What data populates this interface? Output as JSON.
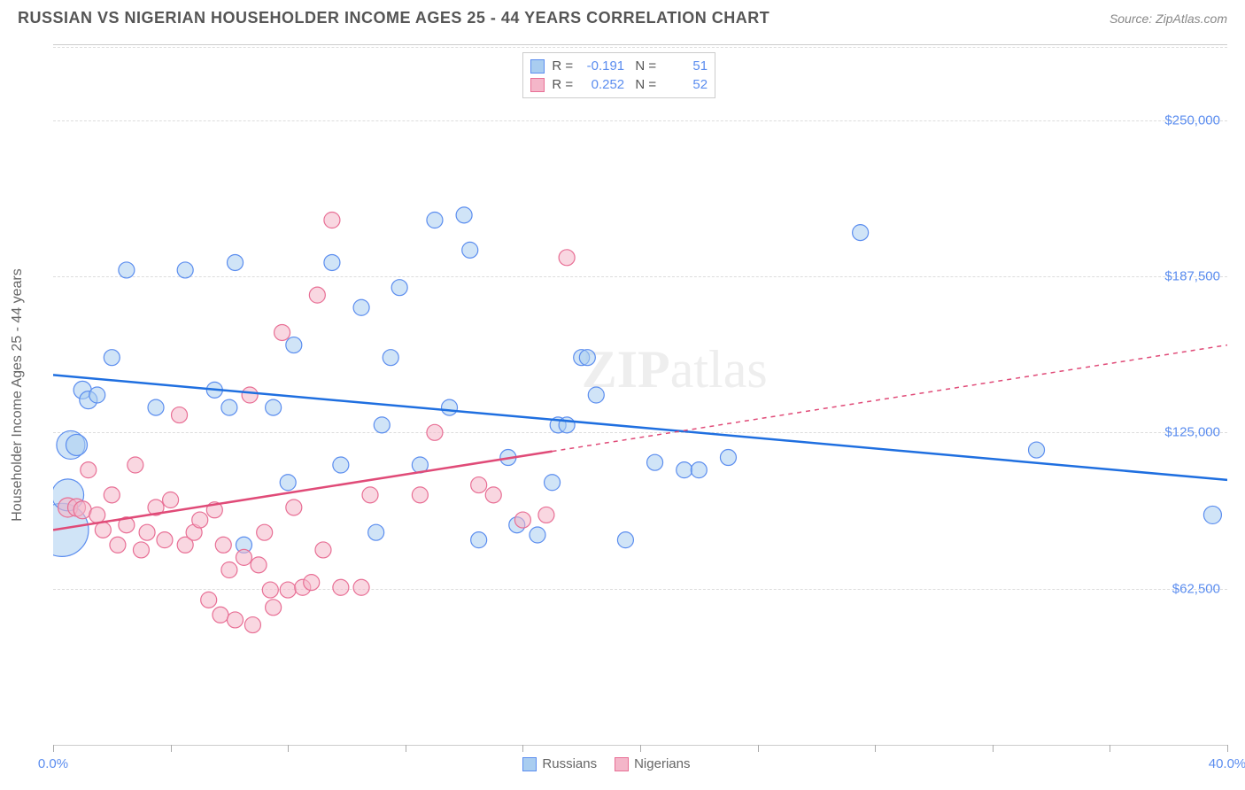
{
  "title": "RUSSIAN VS NIGERIAN HOUSEHOLDER INCOME AGES 25 - 44 YEARS CORRELATION CHART",
  "source": "Source: ZipAtlas.com",
  "y_axis_label": "Householder Income Ages 25 - 44 years",
  "watermark_part1": "ZIP",
  "watermark_part2": "atlas",
  "chart": {
    "type": "scatter",
    "xlim": [
      0,
      40
    ],
    "ylim": [
      0,
      280000
    ],
    "x_unit": "%",
    "x_ticks": [
      0,
      4,
      8,
      12,
      16,
      20,
      24,
      28,
      32,
      36,
      40
    ],
    "x_labels_shown": {
      "0": "0.0%",
      "40": "40.0%"
    },
    "y_gridlines": [
      62500,
      125000,
      187500,
      250000
    ],
    "y_labels": {
      "62500": "$62,500",
      "125000": "$125,000",
      "187500": "$187,500",
      "250000": "$250,000"
    },
    "background_color": "#ffffff",
    "grid_color": "#dddddd",
    "axis_label_color": "#5b8def",
    "series": [
      {
        "name": "Russians",
        "fill": "#a9cdf0",
        "stroke": "#5b8def",
        "fill_opacity": 0.55,
        "r_stat": "-0.191",
        "n_stat": "51",
        "trend": {
          "x1": 0,
          "y1": 148000,
          "x2": 40,
          "y2": 106000,
          "solid_until_x": 40,
          "color": "#1f6fe0",
          "width": 2.5
        },
        "points": [
          {
            "x": 0.3,
            "y": 86000,
            "r": 30
          },
          {
            "x": 0.5,
            "y": 100000,
            "r": 18
          },
          {
            "x": 0.6,
            "y": 120000,
            "r": 16
          },
          {
            "x": 0.8,
            "y": 120000,
            "r": 12
          },
          {
            "x": 1.0,
            "y": 142000,
            "r": 10
          },
          {
            "x": 1.2,
            "y": 138000,
            "r": 10
          },
          {
            "x": 1.5,
            "y": 140000,
            "r": 9
          },
          {
            "x": 2.0,
            "y": 155000,
            "r": 9
          },
          {
            "x": 2.5,
            "y": 190000,
            "r": 9
          },
          {
            "x": 3.5,
            "y": 135000,
            "r": 9
          },
          {
            "x": 4.5,
            "y": 190000,
            "r": 9
          },
          {
            "x": 5.5,
            "y": 142000,
            "r": 9
          },
          {
            "x": 6.0,
            "y": 135000,
            "r": 9
          },
          {
            "x": 6.2,
            "y": 193000,
            "r": 9
          },
          {
            "x": 6.5,
            "y": 80000,
            "r": 9
          },
          {
            "x": 7.5,
            "y": 135000,
            "r": 9
          },
          {
            "x": 8.0,
            "y": 105000,
            "r": 9
          },
          {
            "x": 8.2,
            "y": 160000,
            "r": 9
          },
          {
            "x": 9.5,
            "y": 193000,
            "r": 9
          },
          {
            "x": 9.8,
            "y": 112000,
            "r": 9
          },
          {
            "x": 10.5,
            "y": 175000,
            "r": 9
          },
          {
            "x": 11.0,
            "y": 85000,
            "r": 9
          },
          {
            "x": 11.2,
            "y": 128000,
            "r": 9
          },
          {
            "x": 11.5,
            "y": 155000,
            "r": 9
          },
          {
            "x": 11.8,
            "y": 183000,
            "r": 9
          },
          {
            "x": 12.5,
            "y": 112000,
            "r": 9
          },
          {
            "x": 13.0,
            "y": 210000,
            "r": 9
          },
          {
            "x": 13.5,
            "y": 135000,
            "r": 9
          },
          {
            "x": 14.0,
            "y": 212000,
            "r": 9
          },
          {
            "x": 14.2,
            "y": 198000,
            "r": 9
          },
          {
            "x": 14.5,
            "y": 82000,
            "r": 9
          },
          {
            "x": 15.5,
            "y": 115000,
            "r": 9
          },
          {
            "x": 15.8,
            "y": 88000,
            "r": 9
          },
          {
            "x": 16.5,
            "y": 84000,
            "r": 9
          },
          {
            "x": 17.0,
            "y": 105000,
            "r": 9
          },
          {
            "x": 17.2,
            "y": 128000,
            "r": 9
          },
          {
            "x": 17.5,
            "y": 128000,
            "r": 9
          },
          {
            "x": 18.0,
            "y": 155000,
            "r": 9
          },
          {
            "x": 18.2,
            "y": 155000,
            "r": 9
          },
          {
            "x": 18.5,
            "y": 140000,
            "r": 9
          },
          {
            "x": 19.5,
            "y": 82000,
            "r": 9
          },
          {
            "x": 20.5,
            "y": 113000,
            "r": 9
          },
          {
            "x": 21.5,
            "y": 110000,
            "r": 9
          },
          {
            "x": 22.0,
            "y": 110000,
            "r": 9
          },
          {
            "x": 23.0,
            "y": 115000,
            "r": 9
          },
          {
            "x": 27.5,
            "y": 205000,
            "r": 9
          },
          {
            "x": 33.5,
            "y": 118000,
            "r": 9
          },
          {
            "x": 39.5,
            "y": 92000,
            "r": 10
          }
        ]
      },
      {
        "name": "Nigerians",
        "fill": "#f4b6c9",
        "stroke": "#e86f95",
        "fill_opacity": 0.55,
        "r_stat": "0.252",
        "n_stat": "52",
        "trend": {
          "x1": 0,
          "y1": 86000,
          "x2": 40,
          "y2": 160000,
          "solid_until_x": 17,
          "color": "#e04b78",
          "width": 2.5
        },
        "points": [
          {
            "x": 0.5,
            "y": 95000,
            "r": 11
          },
          {
            "x": 0.8,
            "y": 95000,
            "r": 10
          },
          {
            "x": 1.0,
            "y": 94000,
            "r": 10
          },
          {
            "x": 1.2,
            "y": 110000,
            "r": 9
          },
          {
            "x": 1.5,
            "y": 92000,
            "r": 9
          },
          {
            "x": 1.7,
            "y": 86000,
            "r": 9
          },
          {
            "x": 2.0,
            "y": 100000,
            "r": 9
          },
          {
            "x": 2.2,
            "y": 80000,
            "r": 9
          },
          {
            "x": 2.5,
            "y": 88000,
            "r": 9
          },
          {
            "x": 2.8,
            "y": 112000,
            "r": 9
          },
          {
            "x": 3.0,
            "y": 78000,
            "r": 9
          },
          {
            "x": 3.2,
            "y": 85000,
            "r": 9
          },
          {
            "x": 3.5,
            "y": 95000,
            "r": 9
          },
          {
            "x": 3.8,
            "y": 82000,
            "r": 9
          },
          {
            "x": 4.0,
            "y": 98000,
            "r": 9
          },
          {
            "x": 4.3,
            "y": 132000,
            "r": 9
          },
          {
            "x": 4.5,
            "y": 80000,
            "r": 9
          },
          {
            "x": 4.8,
            "y": 85000,
            "r": 9
          },
          {
            "x": 5.0,
            "y": 90000,
            "r": 9
          },
          {
            "x": 5.3,
            "y": 58000,
            "r": 9
          },
          {
            "x": 5.5,
            "y": 94000,
            "r": 9
          },
          {
            "x": 5.7,
            "y": 52000,
            "r": 9
          },
          {
            "x": 5.8,
            "y": 80000,
            "r": 9
          },
          {
            "x": 6.0,
            "y": 70000,
            "r": 9
          },
          {
            "x": 6.2,
            "y": 50000,
            "r": 9
          },
          {
            "x": 6.5,
            "y": 75000,
            "r": 9
          },
          {
            "x": 6.7,
            "y": 140000,
            "r": 9
          },
          {
            "x": 6.8,
            "y": 48000,
            "r": 9
          },
          {
            "x": 7.0,
            "y": 72000,
            "r": 9
          },
          {
            "x": 7.2,
            "y": 85000,
            "r": 9
          },
          {
            "x": 7.4,
            "y": 62000,
            "r": 9
          },
          {
            "x": 7.5,
            "y": 55000,
            "r": 9
          },
          {
            "x": 7.8,
            "y": 165000,
            "r": 9
          },
          {
            "x": 8.0,
            "y": 62000,
            "r": 9
          },
          {
            "x": 8.2,
            "y": 95000,
            "r": 9
          },
          {
            "x": 8.5,
            "y": 63000,
            "r": 9
          },
          {
            "x": 8.8,
            "y": 65000,
            "r": 9
          },
          {
            "x": 9.0,
            "y": 180000,
            "r": 9
          },
          {
            "x": 9.2,
            "y": 78000,
            "r": 9
          },
          {
            "x": 9.5,
            "y": 210000,
            "r": 9
          },
          {
            "x": 9.8,
            "y": 63000,
            "r": 9
          },
          {
            "x": 10.5,
            "y": 63000,
            "r": 9
          },
          {
            "x": 10.8,
            "y": 100000,
            "r": 9
          },
          {
            "x": 12.5,
            "y": 100000,
            "r": 9
          },
          {
            "x": 13.0,
            "y": 125000,
            "r": 9
          },
          {
            "x": 14.5,
            "y": 104000,
            "r": 9
          },
          {
            "x": 15.0,
            "y": 100000,
            "r": 9
          },
          {
            "x": 16.0,
            "y": 90000,
            "r": 9
          },
          {
            "x": 16.8,
            "y": 92000,
            "r": 9
          },
          {
            "x": 17.5,
            "y": 195000,
            "r": 9
          }
        ]
      }
    ]
  },
  "legend": {
    "item1": "Russians",
    "item2": "Nigerians"
  }
}
